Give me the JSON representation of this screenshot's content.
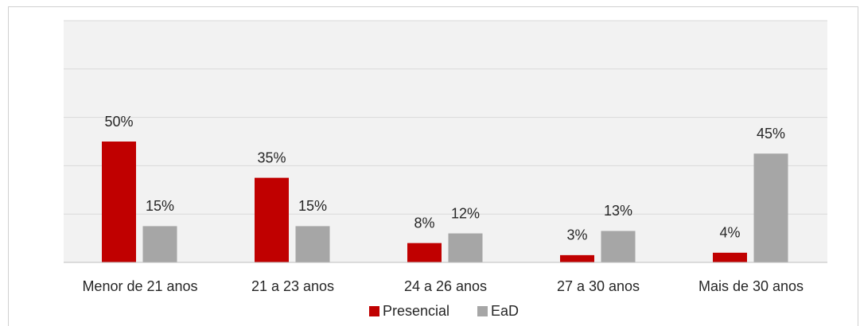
{
  "chart_data": {
    "type": "bar",
    "categories": [
      "Menor de 21 anos",
      "21 a 23 anos",
      "24 a 26 anos",
      "27 a 30 anos",
      "Mais de 30 anos"
    ],
    "series": [
      {
        "name": "Presencial",
        "color": "#c00000",
        "values": [
          50,
          35,
          8,
          3,
          4
        ],
        "value_labels": [
          "50%",
          "35%",
          "8%",
          "3%",
          "4%"
        ]
      },
      {
        "name": "EaD",
        "color": "#a6a6a6",
        "values": [
          15,
          15,
          12,
          13,
          45
        ],
        "value_labels": [
          "15%",
          "15%",
          "12%",
          "13%",
          "45%"
        ]
      }
    ],
    "ylim": [
      0,
      100
    ],
    "yticks": [
      0,
      20,
      40,
      60,
      80,
      100
    ],
    "grid": true,
    "legend": "bottom"
  }
}
